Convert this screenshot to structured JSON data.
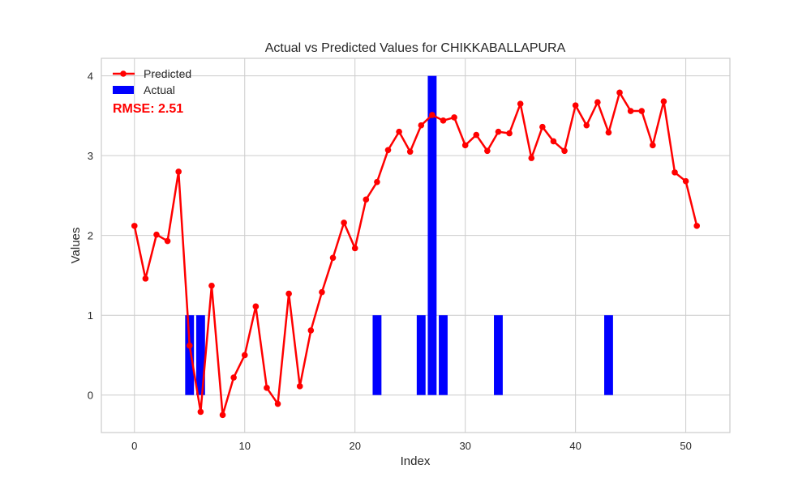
{
  "chart_data": {
    "type": "bar+line",
    "title": "Actual vs Predicted Values for CHIKKABALLAPURA",
    "xlabel": "Index",
    "ylabel": "Values",
    "xlim": [
      -3,
      54
    ],
    "ylim": [
      -0.47,
      4.22
    ],
    "xticks": [
      0,
      10,
      20,
      30,
      40,
      50
    ],
    "yticks": [
      0,
      1,
      2,
      3,
      4
    ],
    "grid": true,
    "legend_position": "upper-left",
    "annotation": "RMSE: 2.51",
    "series": [
      {
        "name": "Actual",
        "kind": "bar",
        "color": "#0000ff",
        "x": [
          0,
          1,
          2,
          3,
          4,
          5,
          6,
          7,
          8,
          9,
          10,
          11,
          12,
          13,
          14,
          15,
          16,
          17,
          18,
          19,
          20,
          21,
          22,
          23,
          24,
          25,
          26,
          27,
          28,
          29,
          30,
          31,
          32,
          33,
          34,
          35,
          36,
          37,
          38,
          39,
          40,
          41,
          42,
          43,
          44,
          45,
          46,
          47,
          48,
          49,
          50,
          51
        ],
        "values": [
          0,
          0,
          0,
          0,
          0,
          1,
          1,
          0,
          0,
          0,
          0,
          0,
          0,
          0,
          0,
          0,
          0,
          0,
          0,
          0,
          0,
          0,
          1,
          0,
          0,
          0,
          1,
          4,
          1,
          0,
          0,
          0,
          0,
          1,
          0,
          0,
          0,
          0,
          0,
          0,
          0,
          0,
          0,
          1,
          0,
          0,
          0,
          0,
          0,
          0,
          0,
          0
        ]
      },
      {
        "name": "Predicted",
        "kind": "line",
        "color": "#ff0000",
        "x": [
          0,
          1,
          2,
          3,
          4,
          5,
          6,
          7,
          8,
          9,
          10,
          11,
          12,
          13,
          14,
          15,
          16,
          17,
          18,
          19,
          20,
          21,
          22,
          23,
          24,
          25,
          26,
          27,
          28,
          29,
          30,
          31,
          32,
          33,
          34,
          35,
          36,
          37,
          38,
          39,
          40,
          41,
          42,
          43,
          44,
          45,
          46,
          47,
          48,
          49,
          50,
          51
        ],
        "values": [
          2.12,
          1.46,
          2.01,
          1.93,
          2.8,
          0.62,
          -0.21,
          1.37,
          -0.25,
          0.22,
          0.5,
          1.11,
          0.09,
          -0.11,
          1.27,
          0.11,
          0.81,
          1.29,
          1.72,
          2.16,
          1.84,
          2.45,
          2.67,
          3.07,
          3.3,
          3.05,
          3.38,
          3.51,
          3.44,
          3.48,
          3.13,
          3.26,
          3.06,
          3.3,
          3.28,
          3.65,
          2.97,
          3.36,
          3.18,
          3.06,
          3.63,
          3.38,
          3.67,
          3.29,
          3.79,
          3.56,
          3.56,
          3.13,
          3.68,
          2.79,
          2.68,
          2.12
        ]
      }
    ]
  }
}
